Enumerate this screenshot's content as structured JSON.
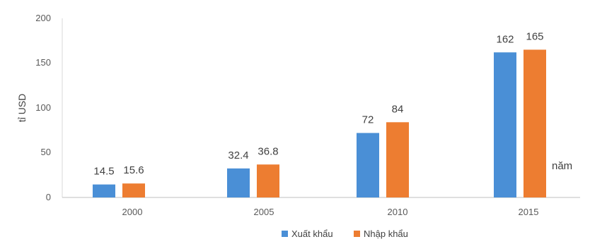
{
  "chart_data": {
    "type": "bar",
    "categories": [
      "2000",
      "2005",
      "2010",
      "2015"
    ],
    "series": [
      {
        "name": "Xuất khẩu",
        "color": "#4a8fd6",
        "values": [
          14.5,
          32.4,
          72,
          162
        ]
      },
      {
        "name": "Nhập khẩu",
        "color": "#ed7d31",
        "values": [
          15.6,
          36.8,
          84,
          165
        ]
      }
    ],
    "data_labels": [
      [
        "14.5",
        "32.4",
        "72",
        "162"
      ],
      [
        "15.6",
        "36.8",
        "84",
        "165"
      ]
    ],
    "ylabel": "tỉ USD",
    "xlabel": "năm",
    "ylim": [
      0,
      200
    ],
    "yticks": [
      "0",
      "50",
      "100",
      "150",
      "200"
    ],
    "grid": false,
    "legend_position": "bottom"
  }
}
